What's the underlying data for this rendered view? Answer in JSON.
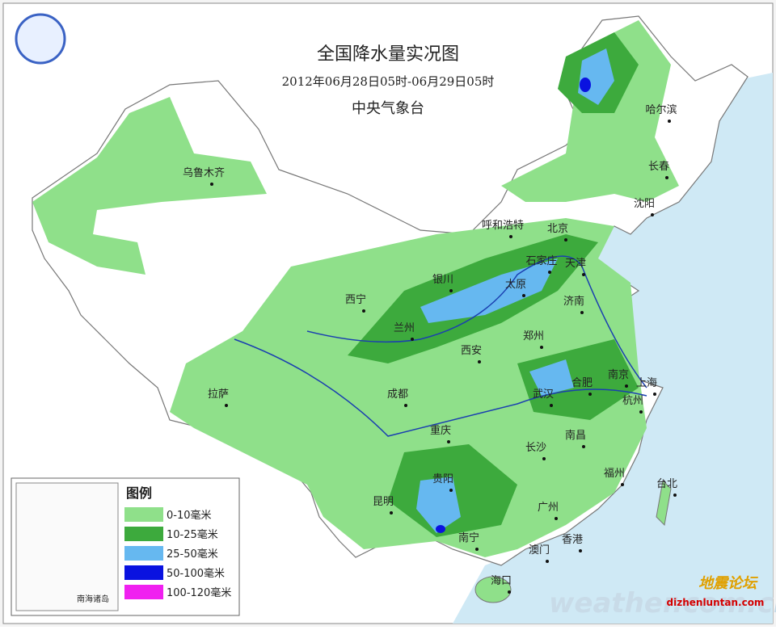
{
  "header": {
    "title": "全国降水量实况图",
    "subtitle": "2012年06月28日05时-06月29日05时",
    "agency": "中央气象台"
  },
  "cities": [
    "乌鲁木齐",
    "哈尔滨",
    "长春",
    "沈阳",
    "呼和浩特",
    "北京",
    "石家庄",
    "天津",
    "银川",
    "太原",
    "西宁",
    "济南",
    "兰州",
    "郑州",
    "西安",
    "南京",
    "上海",
    "合肥",
    "武汉",
    "杭州",
    "拉萨",
    "成都",
    "重庆",
    "南昌",
    "长沙",
    "福州",
    "台北",
    "贵阳",
    "昆明",
    "广州",
    "南宁",
    "香港",
    "澳门",
    "海口"
  ],
  "legend": {
    "title": "图例",
    "items": [
      {
        "label": "0-10毫米",
        "color": "#8fe08a"
      },
      {
        "label": "10-25毫米",
        "color": "#3daa3d"
      },
      {
        "label": "25-50毫米",
        "color": "#66b8f0"
      },
      {
        "label": "50-100毫米",
        "color": "#0a12e0"
      },
      {
        "label": "100-120毫米",
        "color": "#f020f0"
      }
    ]
  },
  "inset": {
    "label": "南海诸岛"
  },
  "watermarks": {
    "forum_cn": "地震论坛",
    "site": "weather.com.cn",
    "forum_url": "dizhenluntan.com"
  }
}
